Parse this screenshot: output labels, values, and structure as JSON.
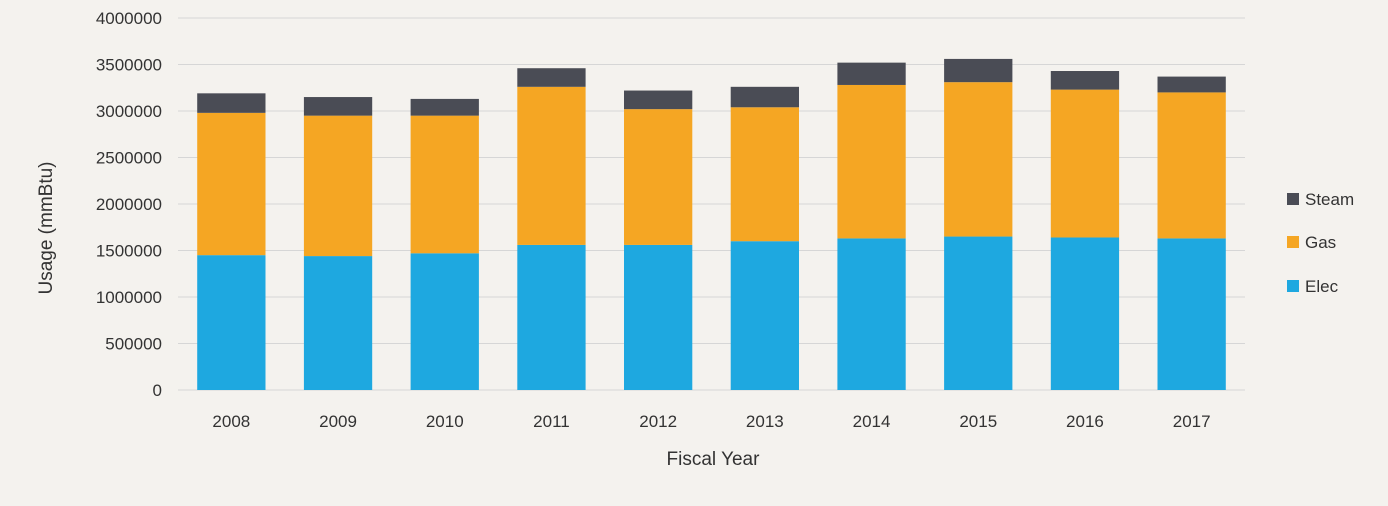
{
  "chart_data": {
    "type": "bar",
    "stacked": true,
    "title": "",
    "xlabel": "Fiscal Year",
    "ylabel": "Usage (mmBtu)",
    "ylim": [
      0,
      4000000
    ],
    "yticks": [
      0,
      500000,
      1000000,
      1500000,
      2000000,
      2500000,
      3000000,
      3500000,
      4000000
    ],
    "ytick_labels": [
      "0",
      "500000",
      "1000000",
      "1500000",
      "2000000",
      "2500000",
      "3000000",
      "3500000",
      "4000000"
    ],
    "grid": true,
    "legend_position": "right",
    "categories": [
      "2008",
      "2009",
      "2010",
      "2011",
      "2012",
      "2013",
      "2014",
      "2015",
      "2016",
      "2017"
    ],
    "series": [
      {
        "name": "Elec",
        "color": "#1ea8e0",
        "values": [
          1450000,
          1440000,
          1470000,
          1560000,
          1560000,
          1600000,
          1630000,
          1650000,
          1640000,
          1630000
        ]
      },
      {
        "name": "Gas",
        "color": "#f5a623",
        "values": [
          1530000,
          1510000,
          1480000,
          1700000,
          1460000,
          1440000,
          1650000,
          1660000,
          1590000,
          1570000
        ]
      },
      {
        "name": "Steam",
        "color": "#4a4c55",
        "values": [
          210000,
          200000,
          180000,
          200000,
          200000,
          220000,
          240000,
          250000,
          200000,
          170000
        ]
      }
    ],
    "legend_order": [
      "Steam",
      "Gas",
      "Elec"
    ]
  }
}
